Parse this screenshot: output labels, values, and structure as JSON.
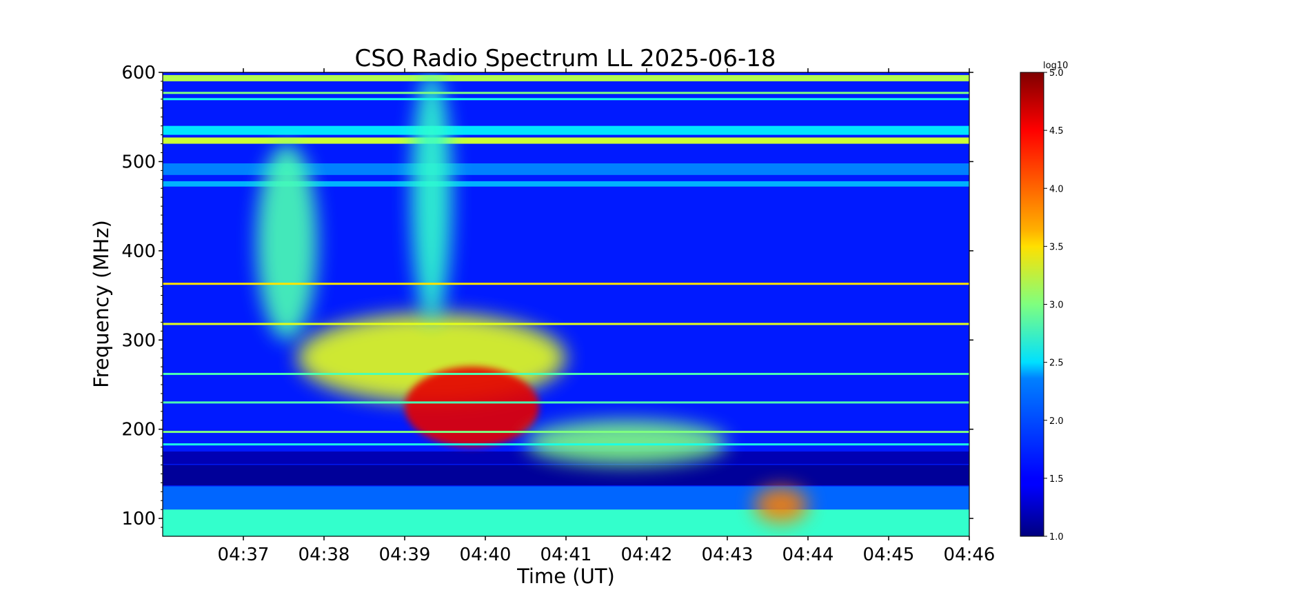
{
  "chart_data": {
    "type": "heatmap",
    "title": "CSO Radio Spectrum LL 2025-06-18",
    "xlabel": "Time (UT)",
    "ylabel": "Frequency (MHz)",
    "x_ticks": [
      "04:37",
      "04:38",
      "04:39",
      "04:40",
      "04:41",
      "04:42",
      "04:43",
      "04:44",
      "04:45",
      "04:46"
    ],
    "xlim": [
      "04:36",
      "04:46"
    ],
    "y_ticks": [
      100,
      200,
      300,
      400,
      500,
      600
    ],
    "ylim": [
      80,
      600
    ],
    "colorbar": {
      "label": "log10",
      "range": [
        1.0,
        5.0
      ],
      "ticks": [
        "1.0",
        "1.5",
        "2.0",
        "2.5",
        "3.0",
        "3.5",
        "4.0",
        "4.5",
        "5.0"
      ],
      "colormap": "jet"
    },
    "background_level": 1.6,
    "bands": [
      {
        "freq": [
          590,
          597
        ],
        "level": 3.2
      },
      {
        "freq": [
          530,
          540
        ],
        "level": 2.4
      },
      {
        "freq": [
          520,
          527
        ],
        "level": 3.3
      },
      {
        "freq": [
          485,
          498
        ],
        "level": 2.0
      },
      {
        "freq": [
          472,
          478
        ],
        "level": 2.2
      },
      {
        "freq": [
          161,
          175
        ],
        "level": 1.2
      },
      {
        "freq": [
          137,
          160
        ],
        "level": 1.1
      },
      {
        "freq": [
          110,
          136
        ],
        "level": 1.9
      },
      {
        "freq": [
          80,
          110
        ],
        "level": 2.7
      }
    ],
    "lines": [
      {
        "freq": 577,
        "level": 3.0
      },
      {
        "freq": 570,
        "level": 2.6
      },
      {
        "freq": 363,
        "level": 3.6
      },
      {
        "freq": 318,
        "level": 3.4
      },
      {
        "freq": 262,
        "level": 2.8
      },
      {
        "freq": 230,
        "level": 2.8
      },
      {
        "freq": 197,
        "level": 3.0
      },
      {
        "freq": 183,
        "level": 2.6
      }
    ],
    "features": [
      {
        "name": "burst-high-drift",
        "time": [
          "04:37:10",
          "04:37:55"
        ],
        "freq": [
          300,
          520
        ],
        "level": 2.8
      },
      {
        "name": "burst-main-diffuse",
        "time": [
          "04:37:40",
          "04:41:00"
        ],
        "freq": [
          230,
          330
        ],
        "level": 3.4
      },
      {
        "name": "burst-core",
        "time": [
          "04:39:00",
          "04:40:40"
        ],
        "freq": [
          180,
          270
        ],
        "level": 4.6
      },
      {
        "name": "burst-tail",
        "time": [
          "04:40:30",
          "04:43:00"
        ],
        "freq": [
          160,
          210
        ],
        "level": 3.0
      },
      {
        "name": "broadband-column",
        "time": [
          "04:39:05",
          "04:39:35"
        ],
        "freq": [
          320,
          600
        ],
        "level": 2.7
      },
      {
        "name": "low-band-patch",
        "time": [
          "04:43:20",
          "04:44:00"
        ],
        "freq": [
          95,
          135
        ],
        "level": 4.0
      }
    ]
  }
}
